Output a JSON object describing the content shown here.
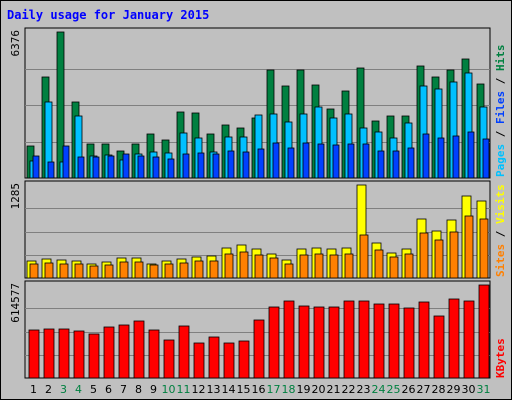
{
  "chart_data": {
    "type": "bar",
    "title": "Daily usage for January 2015",
    "categories": [
      "1",
      "2",
      "3",
      "4",
      "5",
      "6",
      "7",
      "8",
      "9",
      "10",
      "11",
      "12",
      "13",
      "14",
      "15",
      "16",
      "17",
      "18",
      "19",
      "20",
      "21",
      "22",
      "23",
      "24",
      "25",
      "26",
      "27",
      "28",
      "29",
      "30",
      "31"
    ],
    "weekend_days": [
      "3",
      "4",
      "10",
      "11",
      "17",
      "18",
      "24",
      "25",
      "31"
    ],
    "panels": [
      {
        "id": "hits",
        "axis_max_label": "6376",
        "ymax": 6376,
        "series": [
          {
            "name": "Hits",
            "color": "#008040",
            "values": [
              1400,
              4400,
              6376,
              3300,
              1500,
              1500,
              1200,
              1500,
              1900,
              1650,
              2900,
              2850,
              1900,
              2300,
              2200,
              2600,
              4700,
              4000,
              4700,
              4050,
              3000,
              3800,
              4800,
              2500,
              2700,
              2700,
              4900,
              4400,
              4700,
              5200,
              4100
            ]
          },
          {
            "name": "Files",
            "color": "#00c0ff",
            "values": [
              750,
              3300,
              700,
              2700,
              950,
              1000,
              800,
              1050,
              1150,
              1100,
              1950,
              1750,
              1150,
              1800,
              1800,
              2750,
              2800,
              2450,
              2800,
              3100,
              2600,
              2800,
              2200,
              2000,
              1750,
              2400,
              4000,
              3900,
              4200,
              4600,
              3100
            ]
          },
          {
            "name": "Pages",
            "color": "#0040ff",
            "values": [
              950,
              700,
              1400,
              900,
              900,
              950,
              1050,
              950,
              900,
              850,
              1050,
              1100,
              1050,
              1200,
              1150,
              1250,
              1550,
              1300,
              1550,
              1500,
              1450,
              1500,
              1500,
              1200,
              1200,
              1300,
              1900,
              1750,
              1850,
              2000,
              1700
            ]
          }
        ]
      },
      {
        "id": "visits",
        "axis_max_label": "1285",
        "ymax": 1285,
        "series": [
          {
            "name": "Visits",
            "color": "#ffff00",
            "values": [
              240,
              260,
              250,
              230,
              200,
              220,
              270,
              270,
              200,
              230,
              260,
              290,
              300,
              420,
              460,
              400,
              330,
              250,
              400,
              410,
              400,
              420,
              1285,
              480,
              350,
              400,
              810,
              650,
              800,
              1130,
              1060
            ]
          },
          {
            "name": "Sites",
            "color": "#ff8000",
            "values": [
              200,
              210,
              200,
              190,
              170,
              180,
              220,
              220,
              180,
              190,
              210,
              230,
              240,
              330,
              360,
              320,
              270,
              200,
              320,
              330,
              320,
              330,
              600,
              380,
              290,
              330,
              620,
              520,
              630,
              850,
              810
            ]
          }
        ]
      },
      {
        "id": "kbytes",
        "axis_max_label": "614577",
        "ymax": 614577,
        "series": [
          {
            "name": "KBytes",
            "color": "#ff0000",
            "values": [
              317000,
              327000,
              327000,
              312000,
              292000,
              336000,
              350000,
              378000,
              317000,
              248000,
              346000,
              230000,
              268000,
              232000,
              246000,
              385000,
              471000,
              510000,
              476000,
              471000,
              466000,
              510000,
              510000,
              490000,
              490000,
              461000,
              500000,
              407000,
              520000,
              510000,
              614577
            ]
          }
        ]
      }
    ],
    "right_labels": [
      {
        "panel": "hits",
        "parts": [
          {
            "text": "Pages",
            "color": "#00c0ff"
          },
          {
            "text": " / ",
            "color": "#000000"
          },
          {
            "text": "Files",
            "color": "#0040ff"
          },
          {
            "text": " / ",
            "color": "#000000"
          },
          {
            "text": "Hits",
            "color": "#008040"
          }
        ]
      },
      {
        "panel": "visits",
        "parts": [
          {
            "text": "Sites",
            "color": "#ff8000"
          },
          {
            "text": " / ",
            "color": "#000000"
          },
          {
            "text": "Visits",
            "color": "#ffff00"
          }
        ]
      },
      {
        "panel": "kbytes",
        "parts": [
          {
            "text": "KBytes",
            "color": "#ff0000"
          }
        ]
      }
    ],
    "colors": {
      "title": "#0000ff",
      "weekday_label": "#000000",
      "weekend_label": "#008040",
      "plot_bg": "#c0c0c0",
      "grid": "#808080"
    },
    "grid": true
  }
}
